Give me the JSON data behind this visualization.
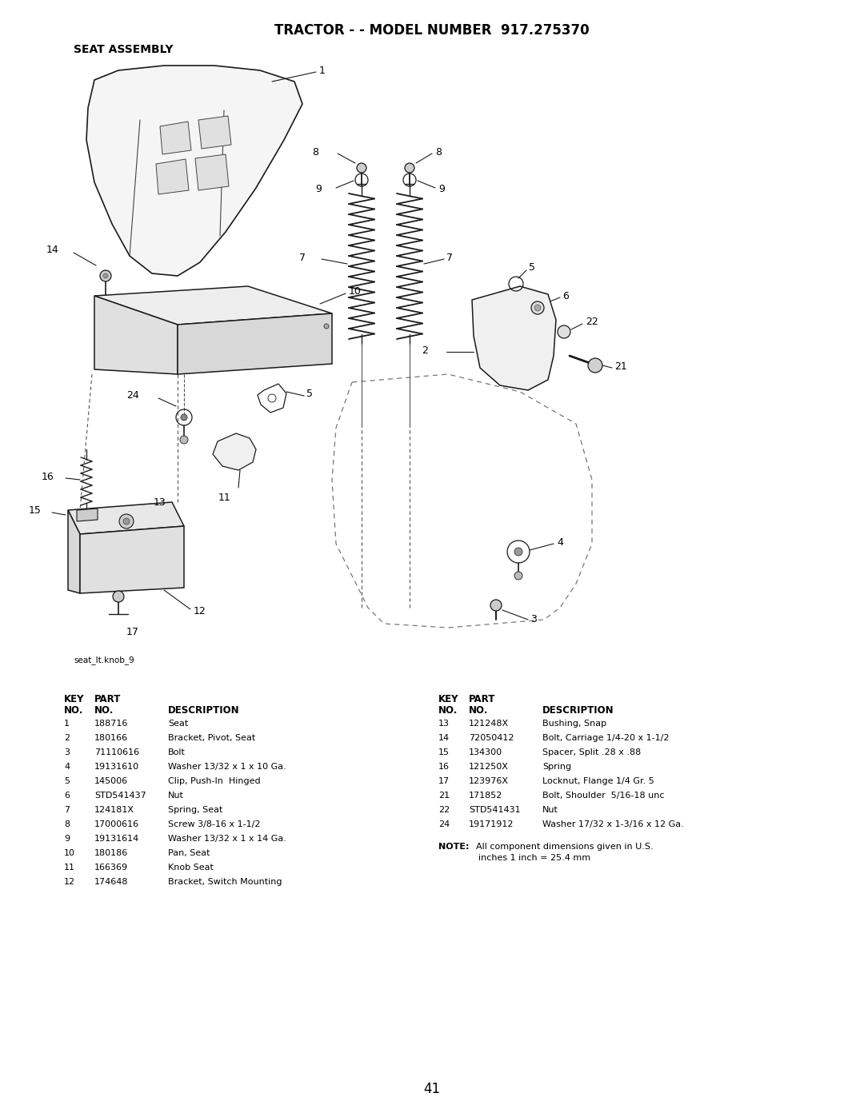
{
  "title": "TRACTOR - - MODEL NUMBER  917.275370",
  "subtitle": "SEAT ASSEMBLY",
  "image_label": "seat_lt.knob_9",
  "page_number": "41",
  "bg_color": "#ffffff",
  "title_fontsize": 12,
  "subtitle_fontsize": 10,
  "left_parts": [
    [
      "1",
      "188716",
      "Seat"
    ],
    [
      "2",
      "180166",
      "Bracket, Pivot, Seat"
    ],
    [
      "3",
      "71110616",
      "Bolt"
    ],
    [
      "4",
      "19131610",
      "Washer 13/32 x 1 x 10 Ga."
    ],
    [
      "5",
      "145006",
      "Clip, Push-In  Hinged"
    ],
    [
      "6",
      "STD541437",
      "Nut"
    ],
    [
      "7",
      "124181X",
      "Spring, Seat"
    ],
    [
      "8",
      "17000616",
      "Screw 3/8-16 x 1-1/2"
    ],
    [
      "9",
      "19131614",
      "Washer 13/32 x 1 x 14 Ga."
    ],
    [
      "10",
      "180186",
      "Pan, Seat"
    ],
    [
      "11",
      "166369",
      "Knob Seat"
    ],
    [
      "12",
      "174648",
      "Bracket, Switch Mounting"
    ]
  ],
  "right_parts": [
    [
      "13",
      "121248X",
      "Bushing, Snap"
    ],
    [
      "14",
      "72050412",
      "Bolt, Carriage 1/4-20 x 1-1/2"
    ],
    [
      "15",
      "134300",
      "Spacer, Split .28 x .88"
    ],
    [
      "16",
      "121250X",
      "Spring"
    ],
    [
      "17",
      "123976X",
      "Locknut, Flange 1/4 Gr. 5"
    ],
    [
      "21",
      "171852",
      "Bolt, Shoulder  5/16-18 unc"
    ],
    [
      "22",
      "STD541431",
      "Nut"
    ],
    [
      "24",
      "19171912",
      "Washer 17/32 x 1-3/16 x 12 Ga."
    ]
  ],
  "note_bold": "NOTE:",
  "note_rest": "  All component dimensions given in U.S.",
  "note_line2": "inches 1 inch = 25.4 mm"
}
